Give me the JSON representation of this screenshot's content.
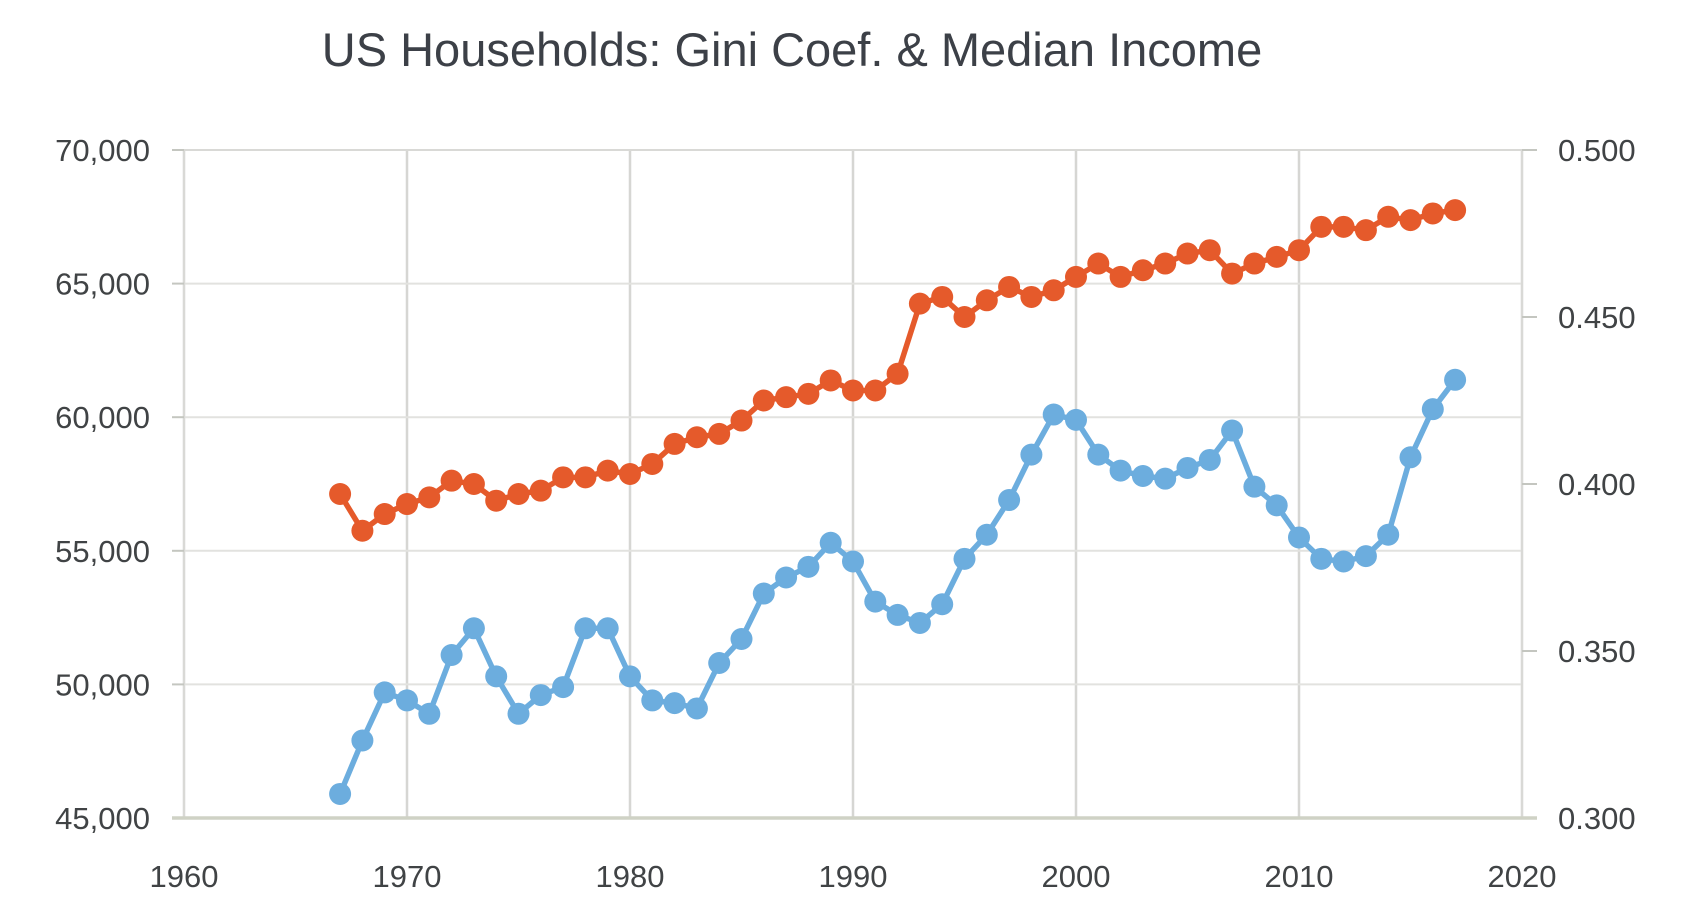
{
  "page": {
    "background": "#ffffff"
  },
  "chart_data": {
    "type": "line",
    "title": "US Households: Gini Coef. & Median Income",
    "legend": "none",
    "marker": "circle",
    "marker_radius": 11,
    "line_width": 5.5,
    "grid": {
      "horizontal": true,
      "vertical": true,
      "h_color": "#e2e2df",
      "v_color": "#d6d6d3",
      "border_color": "#d9d9d6",
      "axis_line_color": "#cfd2c5",
      "tick_color": "#c4c6c0"
    },
    "x": [
      1967,
      1968,
      1969,
      1970,
      1971,
      1972,
      1973,
      1974,
      1975,
      1976,
      1977,
      1978,
      1979,
      1980,
      1981,
      1982,
      1983,
      1984,
      1985,
      1986,
      1987,
      1988,
      1989,
      1990,
      1991,
      1992,
      1993,
      1994,
      1995,
      1996,
      1997,
      1998,
      1999,
      2000,
      2001,
      2002,
      2003,
      2004,
      2005,
      2006,
      2007,
      2008,
      2009,
      2010,
      2011,
      2012,
      2013,
      2014,
      2015,
      2016,
      2017
    ],
    "series": [
      {
        "key": "median-income",
        "name": "Median Income",
        "axis": "left",
        "color": "#6cadde",
        "values": [
          45900,
          47900,
          49700,
          49400,
          48900,
          51100,
          52100,
          50300,
          48900,
          49600,
          49900,
          52100,
          52100,
          50300,
          49400,
          49300,
          49100,
          50800,
          51700,
          53400,
          54000,
          54400,
          55300,
          54600,
          53100,
          52600,
          52300,
          53000,
          54700,
          55600,
          56900,
          58600,
          60100,
          59900,
          58600,
          58000,
          57800,
          57700,
          58100,
          58400,
          59500,
          57400,
          56700,
          55500,
          54700,
          54600,
          54800,
          55600,
          58500,
          60300,
          61400
        ]
      },
      {
        "key": "gini",
        "name": "Gini Coef.",
        "axis": "right",
        "color": "#e55a2b",
        "values": [
          0.397,
          0.386,
          0.391,
          0.394,
          0.396,
          0.401,
          0.4,
          0.395,
          0.397,
          0.398,
          0.402,
          0.402,
          0.404,
          0.403,
          0.406,
          0.412,
          0.414,
          0.415,
          0.419,
          0.425,
          0.426,
          0.427,
          0.431,
          0.428,
          0.428,
          0.433,
          0.454,
          0.456,
          0.45,
          0.455,
          0.459,
          0.456,
          0.458,
          0.462,
          0.466,
          0.462,
          0.464,
          0.466,
          0.469,
          0.47,
          0.463,
          0.466,
          0.468,
          0.47,
          0.477,
          0.477,
          0.476,
          0.48,
          0.479,
          0.481,
          0.482
        ]
      }
    ],
    "x_axis": {
      "range": [
        1960,
        2020
      ],
      "ticks": [
        1960,
        1970,
        1980,
        1990,
        2000,
        2010,
        2020
      ],
      "labels": [
        "1960",
        "1970",
        "1980",
        "1990",
        "2000",
        "2010",
        "2020"
      ]
    },
    "y_axis_left": {
      "range": [
        45000,
        70000
      ],
      "ticks": [
        45000,
        50000,
        55000,
        60000,
        65000,
        70000
      ],
      "labels": [
        "45,000",
        "50,000",
        "55,000",
        "60,000",
        "65,000",
        "70,000"
      ]
    },
    "y_axis_right": {
      "range": [
        0.3,
        0.5
      ],
      "ticks": [
        0.3,
        0.35,
        0.4,
        0.45,
        0.5
      ],
      "labels": [
        "0.300",
        "0.350",
        "0.400",
        "0.450",
        "0.500"
      ]
    }
  }
}
